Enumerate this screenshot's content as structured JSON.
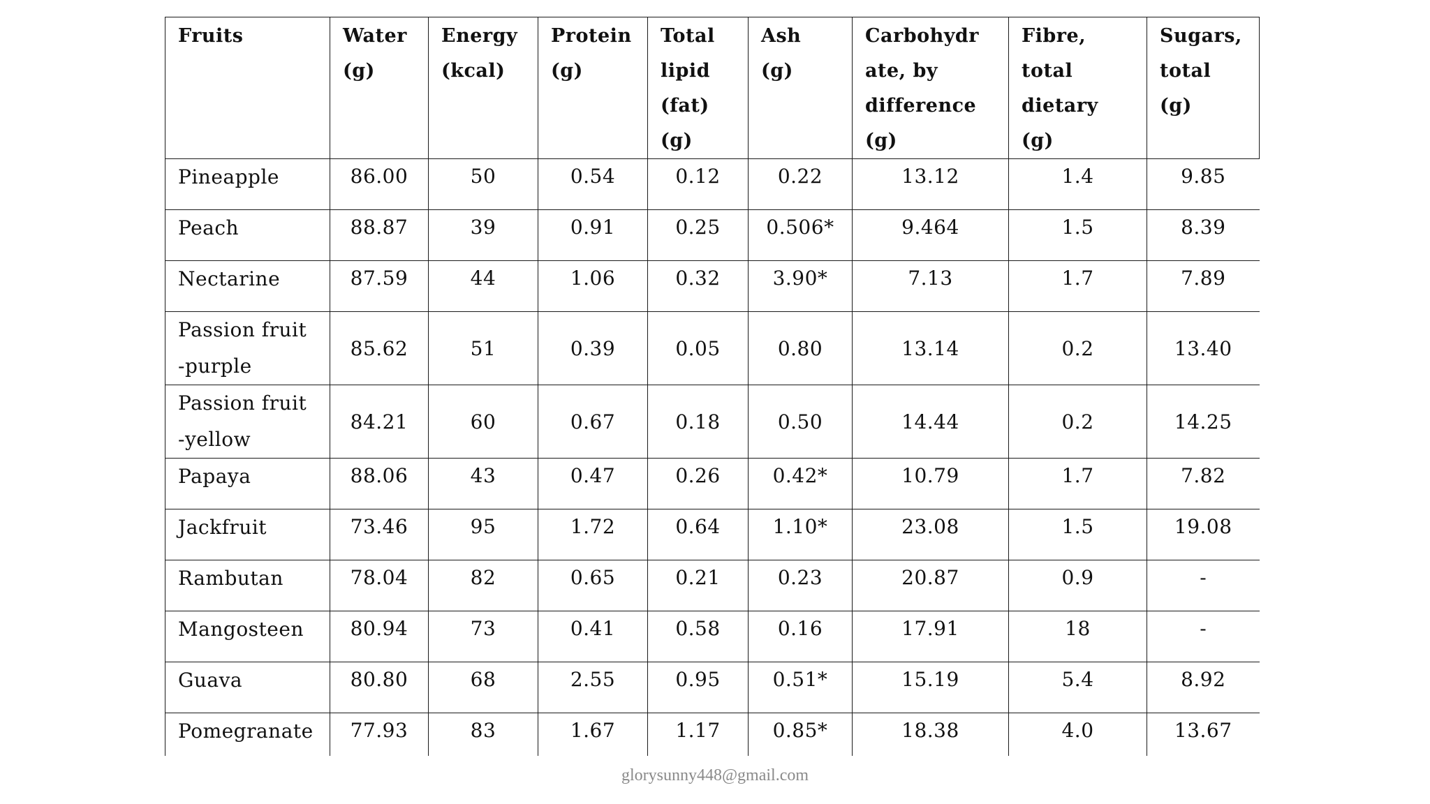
{
  "table": {
    "headers": [
      [
        "Fruits"
      ],
      [
        "Water",
        "(g)"
      ],
      [
        "Energy",
        "(kcal)"
      ],
      [
        "Protein",
        "(g)"
      ],
      [
        "Total",
        "lipid",
        "(fat)",
        "(g)"
      ],
      [
        "Ash",
        "(g)"
      ],
      [
        "Carbohydr",
        "ate, by",
        "difference",
        "(g)"
      ],
      [
        "Fibre,",
        "total",
        "dietary",
        "(g)"
      ],
      [
        "Sugars,",
        "total",
        "(g)"
      ]
    ],
    "rows": [
      {
        "fruit": [
          "Pineapple"
        ],
        "values": [
          "86.00",
          "50",
          "0.54",
          "0.12",
          "0.22",
          "13.12",
          "1.4",
          "9.85"
        ]
      },
      {
        "fruit": [
          "Peach"
        ],
        "values": [
          "88.87",
          "39",
          "0.91",
          "0.25",
          "0.506*",
          "9.464",
          "1.5",
          "8.39"
        ]
      },
      {
        "fruit": [
          "Nectarine"
        ],
        "values": [
          "87.59",
          "44",
          "1.06",
          "0.32",
          "3.90*",
          "7.13",
          "1.7",
          "7.89"
        ]
      },
      {
        "fruit": [
          "Passion fruit",
          "-purple"
        ],
        "values": [
          "85.62",
          "51",
          "0.39",
          "0.05",
          "0.80",
          "13.14",
          "0.2",
          "13.40"
        ]
      },
      {
        "fruit": [
          "Passion fruit",
          "-yellow"
        ],
        "values": [
          "84.21",
          "60",
          "0.67",
          "0.18",
          "0.50",
          "14.44",
          "0.2",
          "14.25"
        ]
      },
      {
        "fruit": [
          "Papaya"
        ],
        "values": [
          "88.06",
          "43",
          "0.47",
          "0.26",
          "0.42*",
          "10.79",
          "1.7",
          "7.82"
        ]
      },
      {
        "fruit": [
          "Jackfruit"
        ],
        "values": [
          "73.46",
          "95",
          "1.72",
          "0.64",
          "1.10*",
          "23.08",
          "1.5",
          "19.08"
        ]
      },
      {
        "fruit": [
          "Rambutan"
        ],
        "values": [
          "78.04",
          "82",
          "0.65",
          "0.21",
          "0.23",
          "20.87",
          "0.9",
          "-"
        ]
      },
      {
        "fruit": [
          "Mangosteen"
        ],
        "values": [
          "80.94",
          "73",
          "0.41",
          "0.58",
          "0.16",
          "17.91",
          "18",
          "-"
        ]
      },
      {
        "fruit": [
          "Guava"
        ],
        "values": [
          "80.80",
          "68",
          "2.55",
          "0.95",
          "0.51*",
          "15.19",
          "5.4",
          "8.92"
        ]
      },
      {
        "fruit": [
          "Pomegranate"
        ],
        "values": [
          "77.93",
          "83",
          "1.67",
          "1.17",
          "0.85*",
          "18.38",
          "4.0",
          "13.67"
        ]
      }
    ]
  },
  "footer": {
    "email": "glorysunny448@gmail.com"
  }
}
